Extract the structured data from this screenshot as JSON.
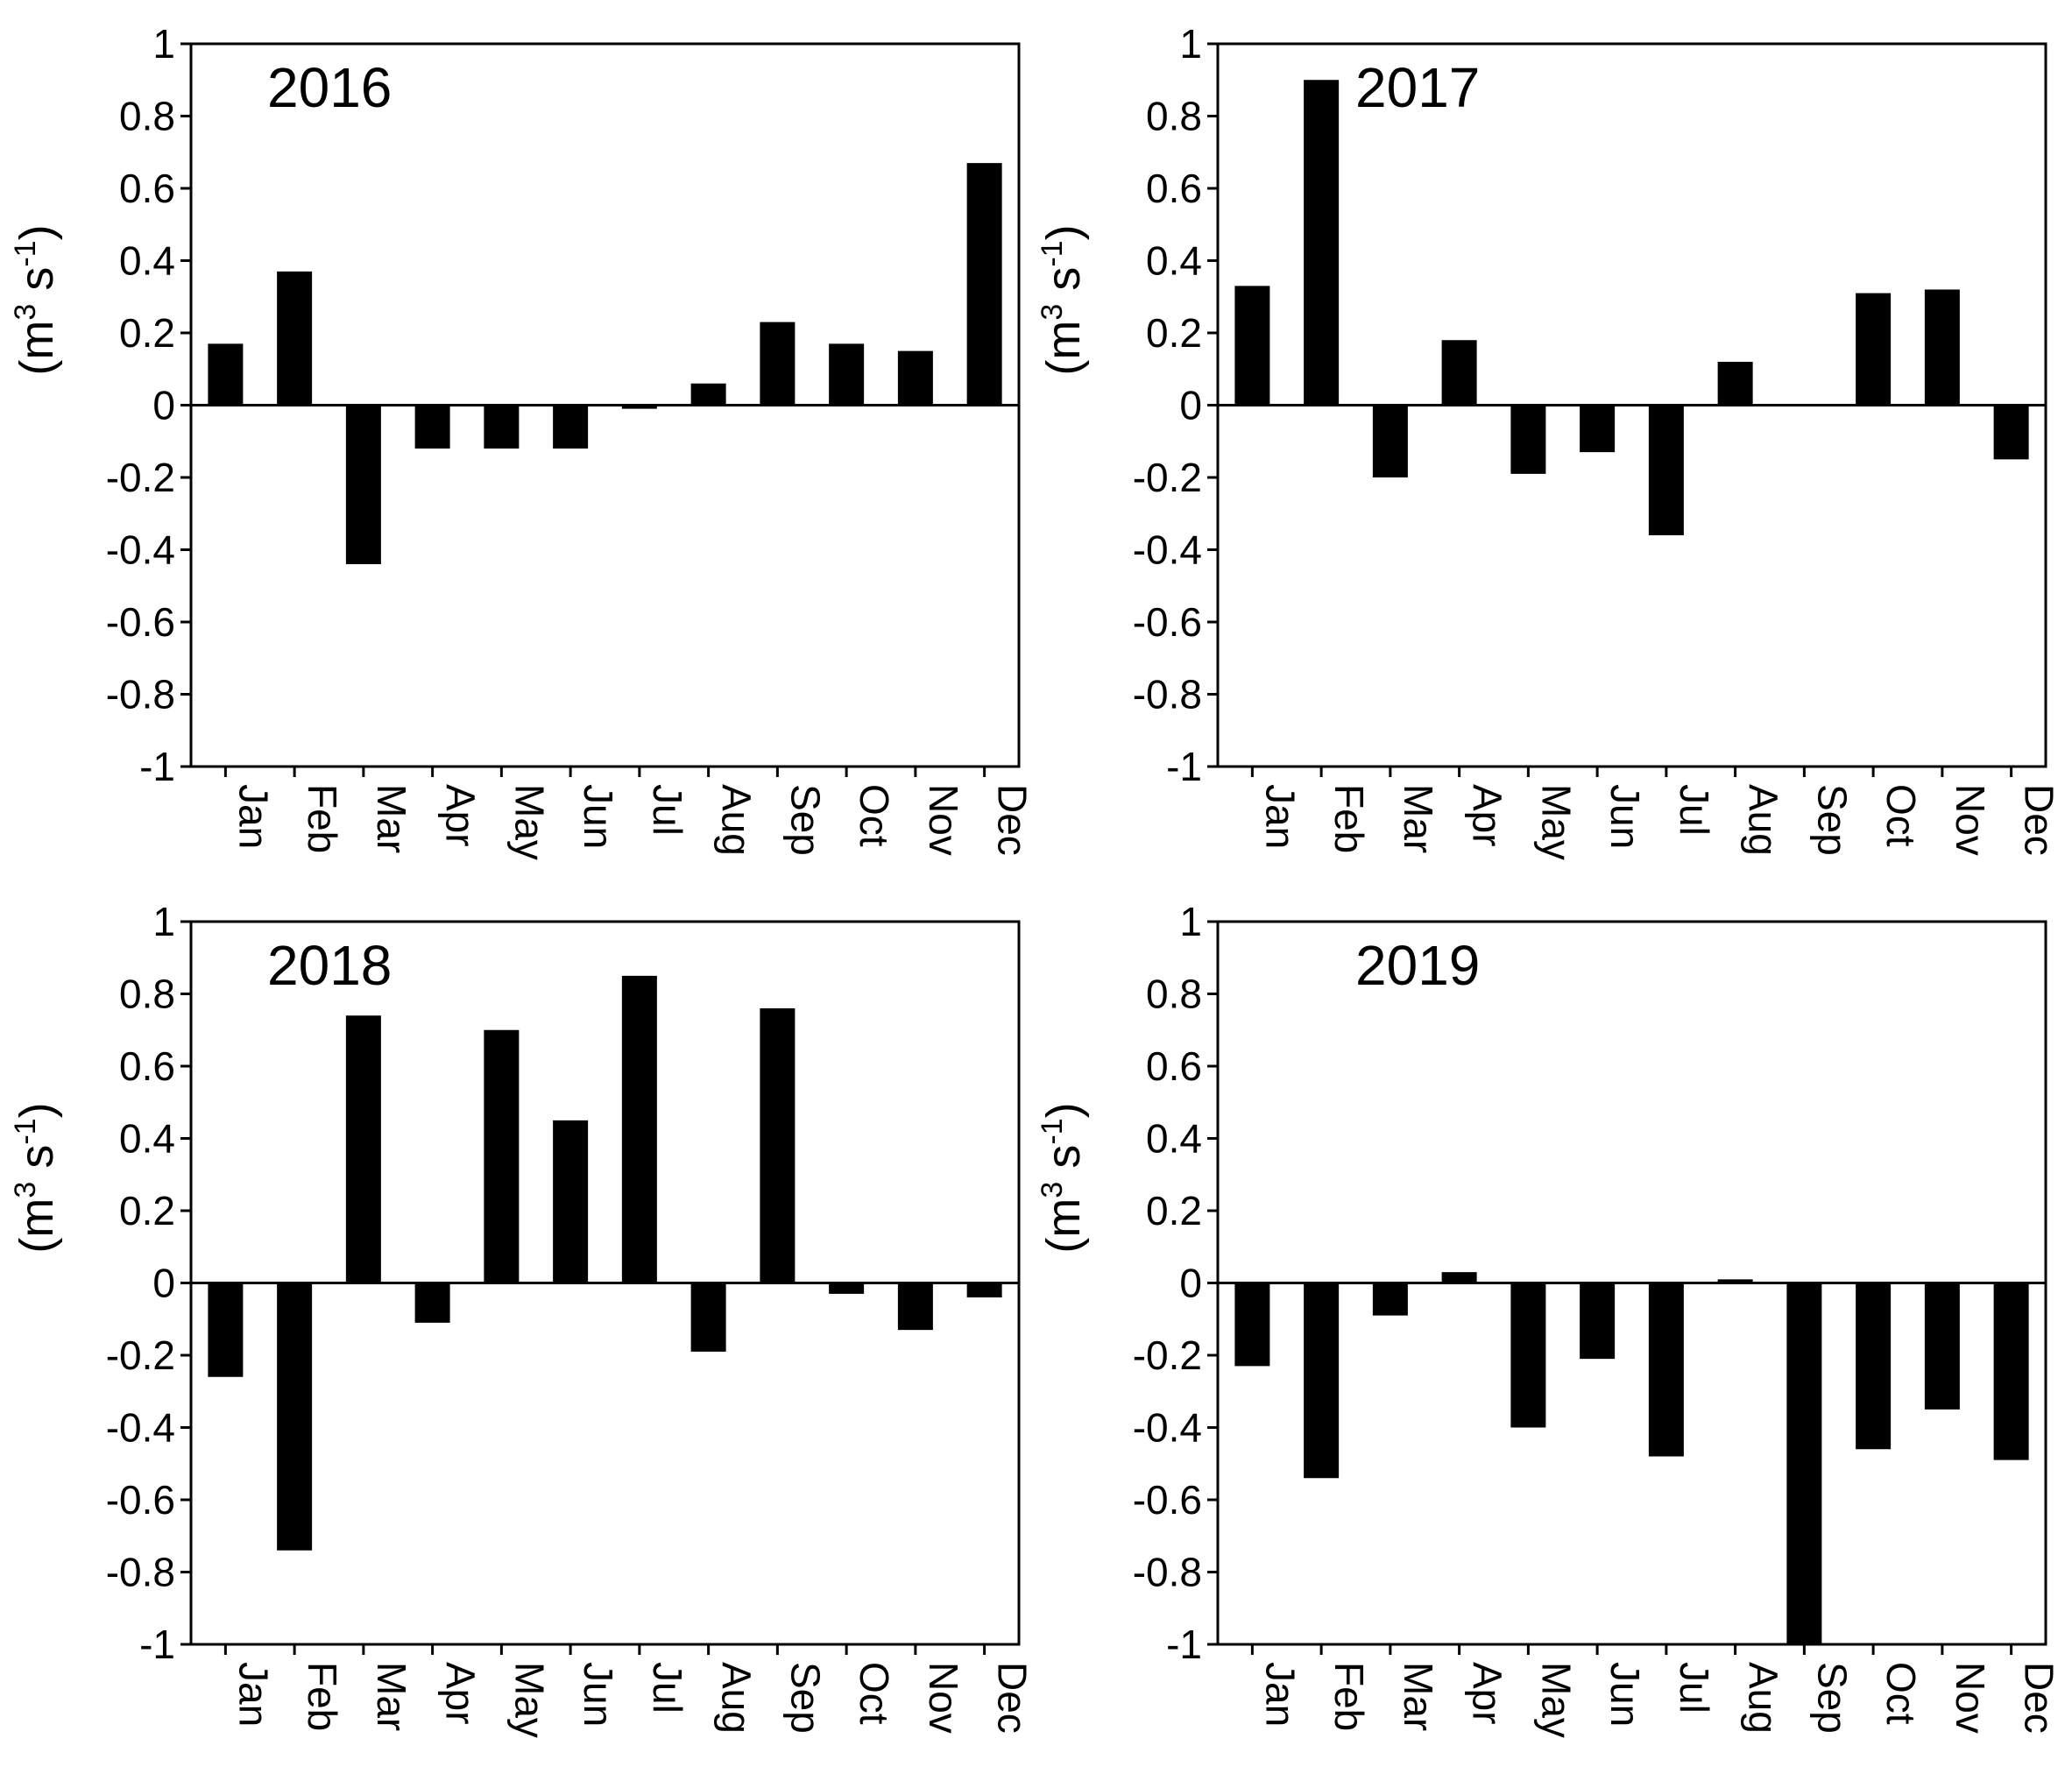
{
  "figure": {
    "background": "#ffffff",
    "bar_color": "#000000",
    "axis_color": "#000000"
  },
  "chart_data": [
    {
      "type": "bar",
      "title": "2016",
      "xlabel": "",
      "ylabel": {
        "prefix": "(m",
        "sup1": "3",
        "mid": " s",
        "sup2": "-1",
        "suffix": ")"
      },
      "ylim": [
        -1,
        1
      ],
      "yticks": [
        1,
        0.8,
        0.6,
        0.4,
        0.2,
        0,
        -0.2,
        -0.4,
        -0.6,
        -0.8,
        -1
      ],
      "ytick_labels": [
        "1",
        "0.8",
        "0.6",
        "0.4",
        "0.2",
        "0",
        "-0.2",
        "-0.4",
        "-0.6",
        "-0.8",
        "-1"
      ],
      "categories": [
        "Jan",
        "Feb",
        "Mar",
        "Apr",
        "May",
        "Jun",
        "Jul",
        "Aug",
        "Sep",
        "Oct",
        "Nov",
        "Dec"
      ],
      "values": [
        0.17,
        0.37,
        -0.44,
        -0.12,
        -0.12,
        -0.12,
        -0.01,
        0.06,
        0.23,
        0.17,
        0.15,
        0.67
      ],
      "grid": false
    },
    {
      "type": "bar",
      "title": "2017",
      "xlabel": "",
      "ylabel": {
        "prefix": "(m",
        "sup1": "3",
        "mid": " s",
        "sup2": "-1",
        "suffix": ")"
      },
      "ylim": [
        -1,
        1
      ],
      "yticks": [
        1,
        0.8,
        0.6,
        0.4,
        0.2,
        0,
        -0.2,
        -0.4,
        -0.6,
        -0.8,
        -1
      ],
      "ytick_labels": [
        "1",
        "0.8",
        "0.6",
        "0.4",
        "0.2",
        "0",
        "-0.2",
        "-0.4",
        "-0.6",
        "-0.8",
        "-1"
      ],
      "categories": [
        "Jan",
        "Feb",
        "Mar",
        "Apr",
        "May",
        "Jun",
        "Jul",
        "Aug",
        "Sep",
        "Oct",
        "Nov",
        "Dec"
      ],
      "values": [
        0.33,
        0.9,
        -0.2,
        0.18,
        -0.19,
        -0.13,
        -0.36,
        0.12,
        0,
        0.31,
        0.32,
        -0.15
      ],
      "grid": false
    },
    {
      "type": "bar",
      "title": "2018",
      "xlabel": "",
      "ylabel": {
        "prefix": "(m",
        "sup1": "3",
        "mid": " s",
        "sup2": "-1",
        "suffix": ")"
      },
      "ylim": [
        -1,
        1
      ],
      "yticks": [
        1,
        0.8,
        0.6,
        0.4,
        0.2,
        0,
        -0.2,
        -0.4,
        -0.6,
        -0.8,
        -1
      ],
      "ytick_labels": [
        "1",
        "0.8",
        "0.6",
        "0.4",
        "0.2",
        "0",
        "-0.2",
        "-0.4",
        "-0.6",
        "-0.8",
        "-1"
      ],
      "categories": [
        "Jan",
        "Feb",
        "Mar",
        "Apr",
        "May",
        "Jun",
        "Jul",
        "Aug",
        "Sep",
        "Oct",
        "Nov",
        "Dec"
      ],
      "values": [
        -0.26,
        -0.74,
        0.74,
        -0.11,
        0.7,
        0.45,
        0.85,
        -0.19,
        0.76,
        -0.03,
        -0.13,
        -0.04
      ],
      "grid": false
    },
    {
      "type": "bar",
      "title": "2019",
      "xlabel": "",
      "ylabel": {
        "prefix": "(m",
        "sup1": "3",
        "mid": " s",
        "sup2": "-1",
        "suffix": ")"
      },
      "ylim": [
        -1,
        1
      ],
      "yticks": [
        1,
        0.8,
        0.6,
        0.4,
        0.2,
        0,
        -0.2,
        -0.4,
        -0.6,
        -0.8,
        -1
      ],
      "ytick_labels": [
        "1",
        "0.8",
        "0.6",
        "0.4",
        "0.2",
        "0",
        "-0.2",
        "-0.4",
        "-0.6",
        "-0.8",
        "-1"
      ],
      "categories": [
        "Jan",
        "Feb",
        "Mar",
        "Apr",
        "May",
        "Jun",
        "Jul",
        "Aug",
        "Sep",
        "Oct",
        "Nov",
        "Dec"
      ],
      "values": [
        -0.23,
        -0.54,
        -0.09,
        0.03,
        -0.4,
        -0.21,
        -0.48,
        0.01,
        -1.0,
        -0.46,
        -0.35,
        -0.49
      ],
      "grid": false
    }
  ]
}
